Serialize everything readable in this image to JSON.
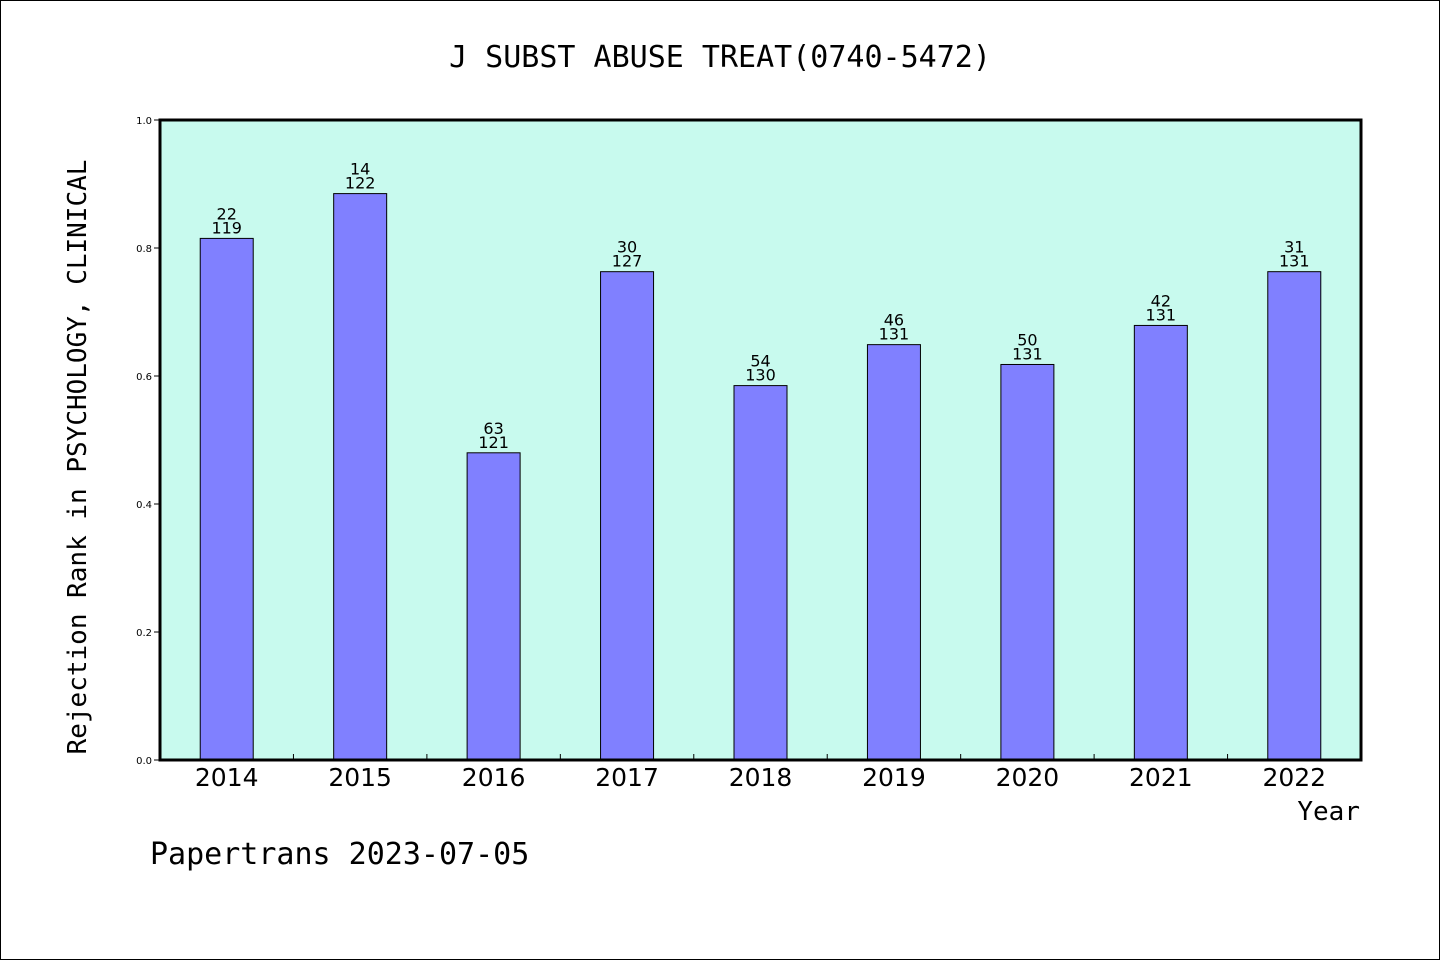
{
  "chart_data": {
    "type": "bar",
    "title": "J SUBST ABUSE TREAT(0740-5472)",
    "xlabel": "Year",
    "ylabel": "Rejection Rank in PSYCHOLOGY, CLINICAL",
    "ylim": [
      0,
      1.0
    ],
    "yticks": [
      "0.0",
      "0.2",
      "0.4",
      "0.6",
      "0.8",
      "1.0"
    ],
    "categories": [
      "2014",
      "2015",
      "2016",
      "2017",
      "2018",
      "2019",
      "2020",
      "2021",
      "2022"
    ],
    "values": [
      0.815,
      0.885,
      0.48,
      0.763,
      0.585,
      0.649,
      0.618,
      0.679,
      0.763
    ],
    "rank_labels": [
      "22",
      "14",
      "63",
      "30",
      "54",
      "46",
      "50",
      "42",
      "31"
    ],
    "total_labels": [
      "119",
      "122",
      "121",
      "127",
      "130",
      "131",
      "131",
      "131",
      "131"
    ],
    "grid": false,
    "colors": {
      "plot_background": "#c8faee",
      "bar_fill": "#8080ff",
      "bar_stroke": "#000000"
    }
  },
  "footer": {
    "text": "Papertrans 2023-07-05"
  }
}
